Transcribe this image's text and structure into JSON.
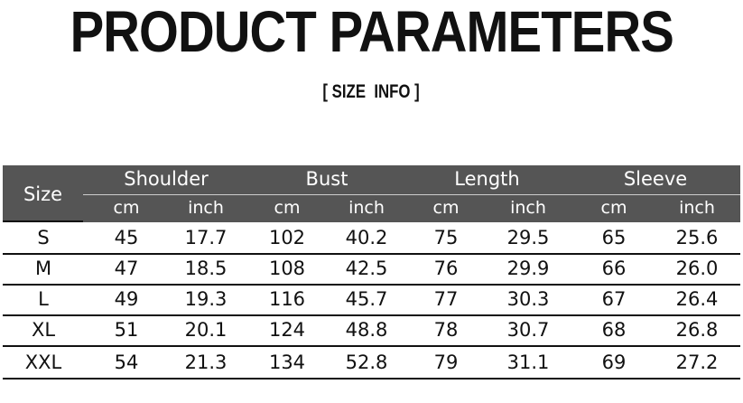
{
  "title": "PRODUCT PARAMETERS",
  "subtitle": "[ SIZE  INFO ]",
  "table": {
    "size_header": "Size",
    "groups": [
      "Shoulder",
      "Bust",
      "Length",
      "Sleeve"
    ],
    "units": [
      "cm",
      "inch",
      "cm",
      "inch",
      "cm",
      "inch",
      "cm",
      "inch"
    ],
    "rows": [
      [
        "S",
        "45",
        "17.7",
        "102",
        "40.2",
        "75",
        "29.5",
        "65",
        "25.6"
      ],
      [
        "M",
        "47",
        "18.5",
        "108",
        "42.5",
        "76",
        "29.9",
        "66",
        "26.0"
      ],
      [
        "L",
        "49",
        "19.3",
        "116",
        "45.7",
        "77",
        "30.3",
        "67",
        "26.4"
      ],
      [
        "XL",
        "51",
        "20.1",
        "124",
        "48.8",
        "78",
        "30.7",
        "68",
        "26.8"
      ],
      [
        "XXL",
        "54",
        "21.3",
        "134",
        "52.8",
        "79",
        "31.1",
        "69",
        "27.2"
      ]
    ],
    "header_bg": "#555555"
  }
}
